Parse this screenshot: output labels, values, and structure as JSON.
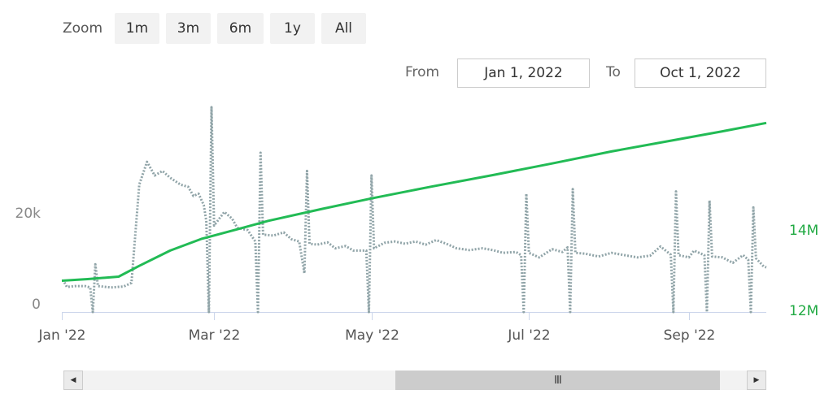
{
  "toolbar": {
    "zoom_label": "Zoom",
    "buttons": [
      "1m",
      "3m",
      "6m",
      "1y",
      "All"
    ],
    "from_label": "From",
    "from_value": "Jan 1, 2022",
    "to_label": "To",
    "to_value": "Oct 1, 2022"
  },
  "scrollbar": {
    "left_arrow": "◀",
    "right_arrow": "▶",
    "grip": "III",
    "thumb_start": 0.47,
    "thumb_end": 0.96
  },
  "colors": {
    "left_series": "#90a4a8",
    "right_series": "#22bb55",
    "left_axis_text": "#888888",
    "right_axis_text": "#22aa44"
  },
  "chart_data": {
    "type": "line",
    "x_start": "2022-01-01",
    "x_end": "2022-10-01",
    "x_ticks": [
      {
        "date": "2022-01-01",
        "label": "Jan '22"
      },
      {
        "date": "2022-03-01",
        "label": "Mar '22"
      },
      {
        "date": "2022-05-01",
        "label": "May '22"
      },
      {
        "date": "2022-07-01",
        "label": "Jul '22"
      },
      {
        "date": "2022-09-01",
        "label": "Sep '22"
      }
    ],
    "left_axis": {
      "ticks": [
        {
          "value": 0,
          "label": "0"
        },
        {
          "value": 20000,
          "label": "20k"
        }
      ],
      "ylim": [
        0,
        45000
      ]
    },
    "right_axis": {
      "ticks": [
        {
          "value": 12000000,
          "label": "12M"
        },
        {
          "value": 14000000,
          "label": "14M"
        }
      ],
      "ylim": [
        12000000,
        17100000
      ]
    },
    "series": [
      {
        "axis": "left",
        "style": "dotted",
        "points": [
          [
            "2022-01-02",
            6500
          ],
          [
            "2022-01-03",
            5500
          ],
          [
            "2022-01-06",
            5700
          ],
          [
            "2022-01-10",
            5700
          ],
          [
            "2022-01-12",
            5400
          ],
          [
            "2022-01-13",
            0
          ],
          [
            "2022-01-14",
            10500
          ],
          [
            "2022-01-15",
            5700
          ],
          [
            "2022-01-20",
            5400
          ],
          [
            "2022-01-25",
            5600
          ],
          [
            "2022-01-28",
            6400
          ],
          [
            "2022-01-31",
            28000
          ],
          [
            "2022-02-03",
            33000
          ],
          [
            "2022-02-06",
            30000
          ],
          [
            "2022-02-09",
            31000
          ],
          [
            "2022-02-12",
            29500
          ],
          [
            "2022-02-16",
            28000
          ],
          [
            "2022-02-19",
            27500
          ],
          [
            "2022-02-21",
            25500
          ],
          [
            "2022-02-23",
            26000
          ],
          [
            "2022-02-25",
            23500
          ],
          [
            "2022-02-26",
            20000
          ],
          [
            "2022-02-27",
            0
          ],
          [
            "2022-02-28",
            45000
          ],
          [
            "2022-03-01",
            19000
          ],
          [
            "2022-03-05",
            22000
          ],
          [
            "2022-03-08",
            20500
          ],
          [
            "2022-03-10",
            18500
          ],
          [
            "2022-03-14",
            18000
          ],
          [
            "2022-03-17",
            15500
          ],
          [
            "2022-03-18",
            0
          ],
          [
            "2022-03-19",
            35000
          ],
          [
            "2022-03-20",
            17000
          ],
          [
            "2022-03-24",
            16800
          ],
          [
            "2022-03-28",
            17500
          ],
          [
            "2022-03-31",
            16000
          ],
          [
            "2022-04-03",
            15500
          ],
          [
            "2022-04-05",
            8500
          ],
          [
            "2022-04-06",
            31000
          ],
          [
            "2022-04-07",
            15000
          ],
          [
            "2022-04-10",
            14800
          ],
          [
            "2022-04-14",
            15300
          ],
          [
            "2022-04-17",
            14000
          ],
          [
            "2022-04-21",
            14500
          ],
          [
            "2022-04-24",
            13500
          ],
          [
            "2022-04-29",
            13500
          ],
          [
            "2022-04-30",
            0
          ],
          [
            "2022-05-01",
            30000
          ],
          [
            "2022-05-02",
            14000
          ],
          [
            "2022-05-06",
            15200
          ],
          [
            "2022-05-10",
            15500
          ],
          [
            "2022-05-14",
            15000
          ],
          [
            "2022-05-18",
            15500
          ],
          [
            "2022-05-22",
            14800
          ],
          [
            "2022-05-26",
            15800
          ],
          [
            "2022-05-30",
            15000
          ],
          [
            "2022-06-03",
            14000
          ],
          [
            "2022-06-08",
            13600
          ],
          [
            "2022-06-13",
            14000
          ],
          [
            "2022-06-17",
            13600
          ],
          [
            "2022-06-21",
            13000
          ],
          [
            "2022-06-26",
            13200
          ],
          [
            "2022-06-28",
            12500
          ],
          [
            "2022-06-29",
            0
          ],
          [
            "2022-06-30",
            26000
          ],
          [
            "2022-07-01",
            13000
          ],
          [
            "2022-07-05",
            12000
          ],
          [
            "2022-07-10",
            13800
          ],
          [
            "2022-07-14",
            13200
          ],
          [
            "2022-07-16",
            14200
          ],
          [
            "2022-07-17",
            0
          ],
          [
            "2022-07-18",
            27000
          ],
          [
            "2022-07-19",
            13000
          ],
          [
            "2022-07-23",
            12800
          ],
          [
            "2022-07-28",
            12200
          ],
          [
            "2022-08-02",
            13000
          ],
          [
            "2022-08-07",
            12500
          ],
          [
            "2022-08-12",
            12000
          ],
          [
            "2022-08-17",
            12400
          ],
          [
            "2022-08-21",
            14400
          ],
          [
            "2022-08-25",
            12600
          ],
          [
            "2022-08-26",
            0
          ],
          [
            "2022-08-27",
            26500
          ],
          [
            "2022-08-28",
            12500
          ],
          [
            "2022-09-01",
            12000
          ],
          [
            "2022-09-03",
            13500
          ],
          [
            "2022-09-07",
            12500
          ],
          [
            "2022-09-08",
            0
          ],
          [
            "2022-09-09",
            24500
          ],
          [
            "2022-09-10",
            12200
          ],
          [
            "2022-09-14",
            12000
          ],
          [
            "2022-09-18",
            10800
          ],
          [
            "2022-09-22",
            12500
          ],
          [
            "2022-09-24",
            11500
          ],
          [
            "2022-09-25",
            0
          ],
          [
            "2022-09-26",
            23000
          ],
          [
            "2022-09-27",
            11800
          ],
          [
            "2022-09-30",
            10000
          ],
          [
            "2022-10-01",
            9800
          ]
        ]
      },
      {
        "axis": "right",
        "style": "solid",
        "points": [
          [
            "2022-01-01",
            12780000
          ],
          [
            "2022-01-11",
            12820000
          ],
          [
            "2022-01-23",
            12880000
          ],
          [
            "2022-01-31",
            13150000
          ],
          [
            "2022-02-12",
            13530000
          ],
          [
            "2022-02-24",
            13820000
          ],
          [
            "2022-03-10",
            14060000
          ],
          [
            "2022-03-22",
            14270000
          ],
          [
            "2022-04-12",
            14570000
          ],
          [
            "2022-05-01",
            14830000
          ],
          [
            "2022-05-24",
            15120000
          ],
          [
            "2022-06-17",
            15410000
          ],
          [
            "2022-07-10",
            15700000
          ],
          [
            "2022-08-02",
            16000000
          ],
          [
            "2022-08-27",
            16290000
          ],
          [
            "2022-09-14",
            16500000
          ],
          [
            "2022-10-01",
            16710000
          ]
        ]
      }
    ]
  }
}
